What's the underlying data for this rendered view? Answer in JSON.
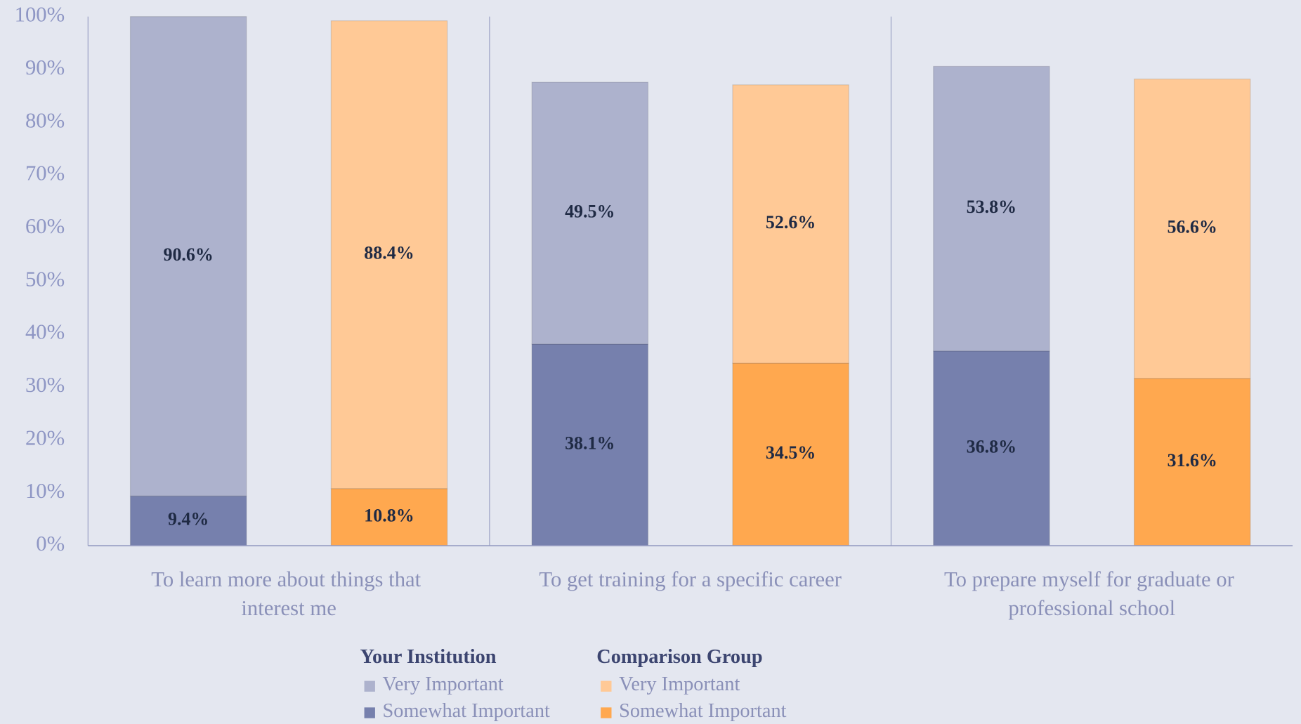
{
  "chart_data": {
    "type": "stacked-bar",
    "categories": [
      "To learn more about things that interest me",
      "To get training for a specific career",
      "To prepare myself for graduate or professional school"
    ],
    "groups": [
      {
        "name": "Your Institution",
        "series": [
          {
            "name": "Somewhat Important",
            "color": "#7680ad",
            "values": [
              9.4,
              38.1,
              36.8
            ],
            "value_labels": [
              "9.4%",
              "38.1%",
              "36.8%"
            ]
          },
          {
            "name": "Very Important",
            "color": "#adb2cd",
            "values": [
              90.6,
              49.5,
              53.8
            ],
            "value_labels": [
              "90.6%",
              "49.5%",
              "53.8%"
            ]
          }
        ]
      },
      {
        "name": "Comparison Group",
        "series": [
          {
            "name": "Somewhat Important",
            "color": "#ffa84f",
            "values": [
              10.8,
              34.5,
              31.6
            ],
            "value_labels": [
              "10.8%",
              "34.5%",
              "31.6%"
            ]
          },
          {
            "name": "Very Important",
            "color": "#ffc996",
            "values": [
              88.4,
              52.6,
              56.6
            ],
            "value_labels": [
              "88.4%",
              "52.6%",
              "56.6%"
            ]
          }
        ]
      }
    ],
    "ylim": [
      0,
      100
    ],
    "yticks": [
      {
        "value": 0,
        "label": "0%"
      },
      {
        "value": 10,
        "label": "10%"
      },
      {
        "value": 20,
        "label": "20%"
      },
      {
        "value": 30,
        "label": "30%"
      },
      {
        "value": 40,
        "label": "40%"
      },
      {
        "value": 50,
        "label": "50%"
      },
      {
        "value": 60,
        "label": "60%"
      },
      {
        "value": 70,
        "label": "70%"
      },
      {
        "value": 80,
        "label": "80%"
      },
      {
        "value": 90,
        "label": "90%"
      },
      {
        "value": 100,
        "label": "100%"
      }
    ]
  }
}
